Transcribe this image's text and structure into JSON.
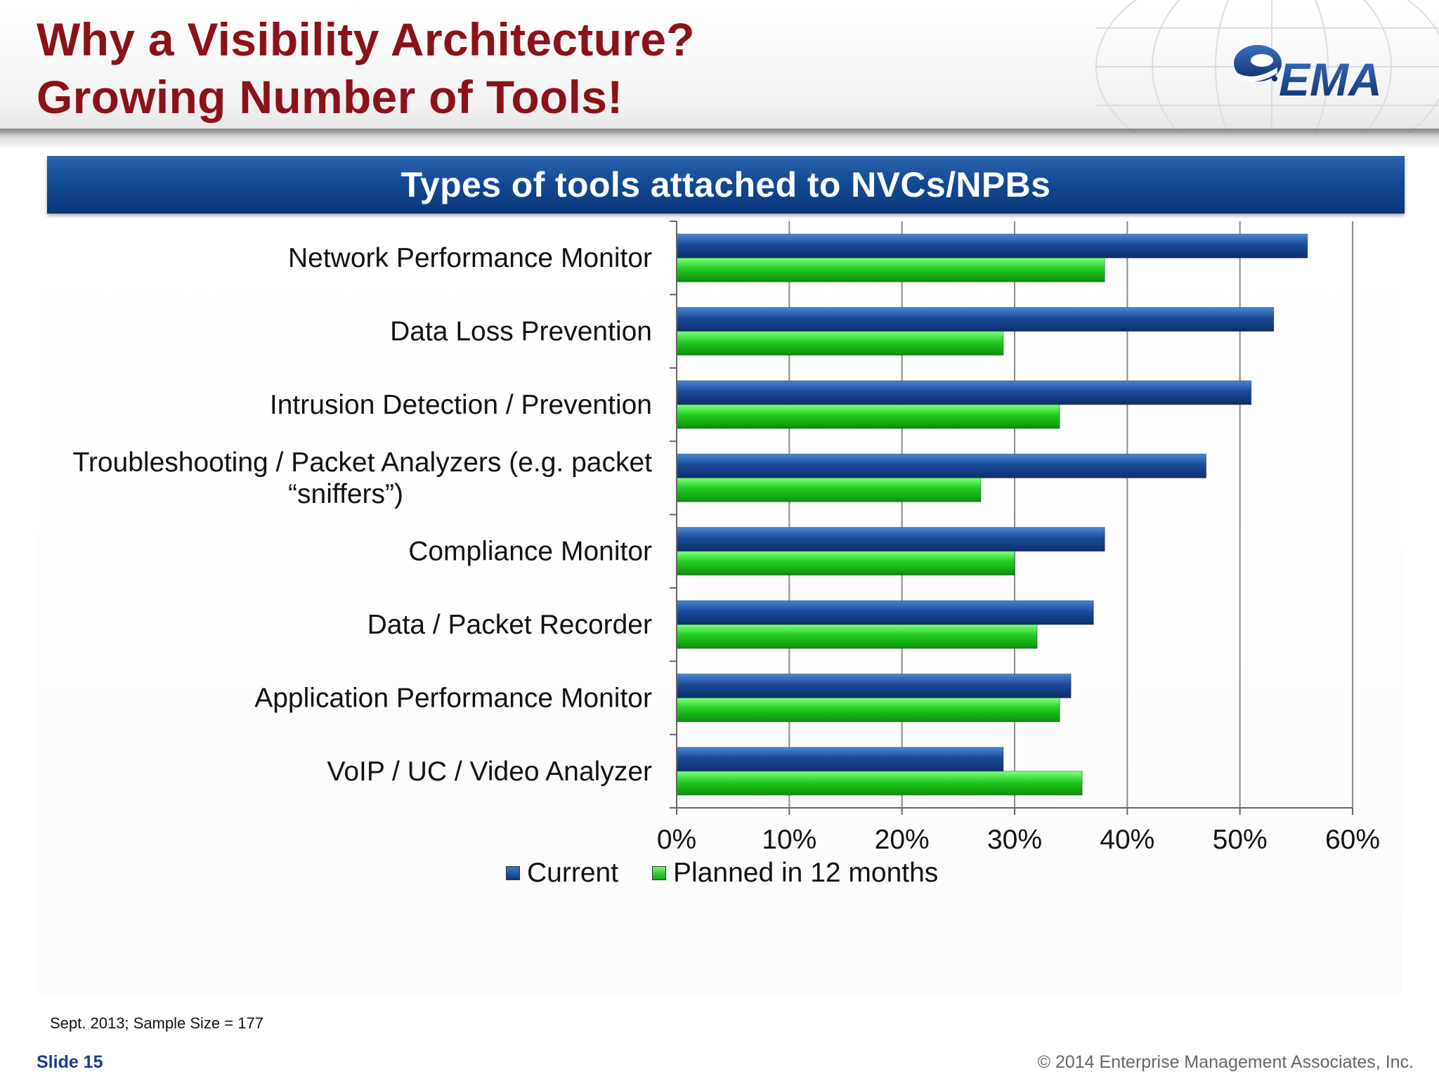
{
  "slide": {
    "title_line1": "Why a Visibility Architecture?",
    "title_line2": "Growing Number of Tools!",
    "logo_text": "EMA",
    "source_note": "Sept. 2013; Sample Size = 177",
    "slide_number": "Slide  15",
    "copyright": "© 2014 Enterprise Management Associates, Inc."
  },
  "colors": {
    "title": "#8b1219",
    "banner": "#134a94",
    "current": "#1a4a9a",
    "planned": "#22cc22",
    "logo": "#173f86"
  },
  "chart_data": {
    "type": "bar",
    "orientation": "horizontal",
    "title": "Types of tools attached to NVCs/NPBs",
    "categories": [
      [
        "Network Performance Monitor"
      ],
      [
        "Data Loss Prevention"
      ],
      [
        "Intrusion Detection / Prevention"
      ],
      [
        "Troubleshooting / Packet Analyzers (e.g. packet",
        "“sniffers”)"
      ],
      [
        "Compliance Monitor"
      ],
      [
        "Data / Packet Recorder"
      ],
      [
        "Application Performance Monitor"
      ],
      [
        "VoIP / UC / Video Analyzer"
      ]
    ],
    "series": [
      {
        "name": "Current",
        "values": [
          56,
          53,
          51,
          47,
          38,
          37,
          35,
          29
        ]
      },
      {
        "name": "Planned in 12 months",
        "values": [
          38,
          29,
          34,
          27,
          30,
          32,
          34,
          36
        ]
      }
    ],
    "xlim": [
      0,
      60
    ],
    "x_ticks": [
      "0%",
      "10%",
      "20%",
      "30%",
      "40%",
      "50%",
      "60%"
    ],
    "grid": true,
    "legend_position": "bottom"
  }
}
